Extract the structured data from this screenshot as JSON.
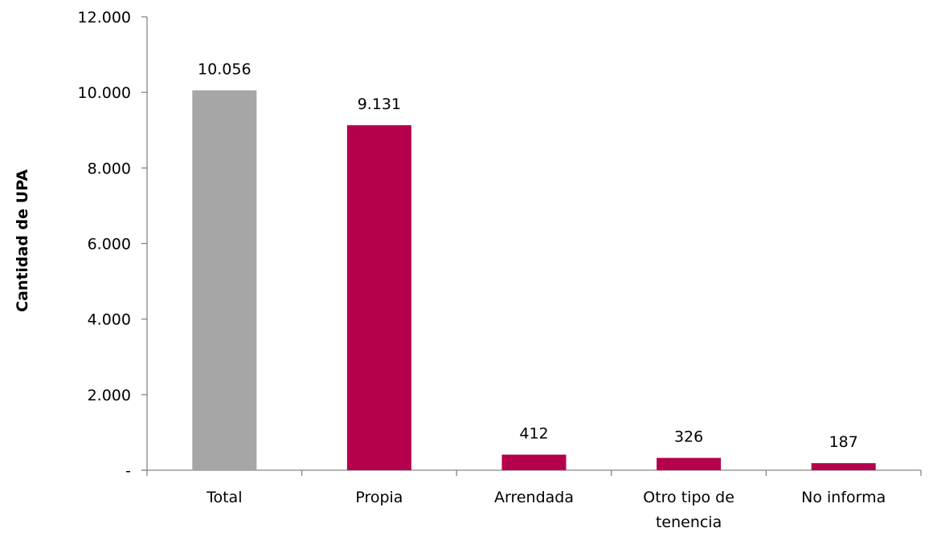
{
  "chart_data": {
    "type": "bar",
    "title": "",
    "xlabel": "",
    "ylabel": "Cantidad de UPA",
    "ylim": [
      0,
      12000
    ],
    "yticks": [
      {
        "value": 0,
        "label": "-"
      },
      {
        "value": 2000,
        "label": "2.000"
      },
      {
        "value": 4000,
        "label": "4.000"
      },
      {
        "value": 6000,
        "label": "6.000"
      },
      {
        "value": 8000,
        "label": "8.000"
      },
      {
        "value": 10000,
        "label": "10.000"
      },
      {
        "value": 12000,
        "label": "12.000"
      }
    ],
    "categories": [
      [
        "Total"
      ],
      [
        "Propia"
      ],
      [
        "Arrendada"
      ],
      [
        "Otro tipo de",
        "tenencia"
      ],
      [
        "No informa"
      ]
    ],
    "values": [
      10056,
      9131,
      412,
      326,
      187
    ],
    "data_labels": [
      "10.056",
      "9.131",
      "412",
      "326",
      "187"
    ],
    "bar_colors": [
      "#a6a6a6",
      "#b5004c",
      "#b5004c",
      "#b5004c",
      "#b5004c"
    ],
    "axis_color": "#868686",
    "grid": false,
    "legend": "none"
  }
}
